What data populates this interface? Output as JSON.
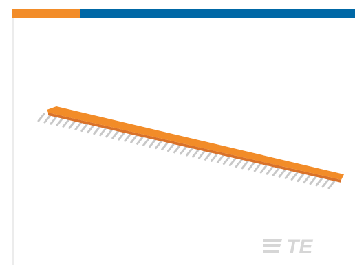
{
  "header": {
    "accent_colors": {
      "primary": "#f28c28",
      "secondary": "#0068a6"
    }
  },
  "product": {
    "image_icon": "pin-strip-icon",
    "strip_color": "#f28c28",
    "pin_color": "#c8c8c8",
    "pin_count": 48
  },
  "brand": {
    "logo_icon": "te-logo-icon",
    "logo_text": "TE",
    "logo_color": "#d6d6d6"
  }
}
